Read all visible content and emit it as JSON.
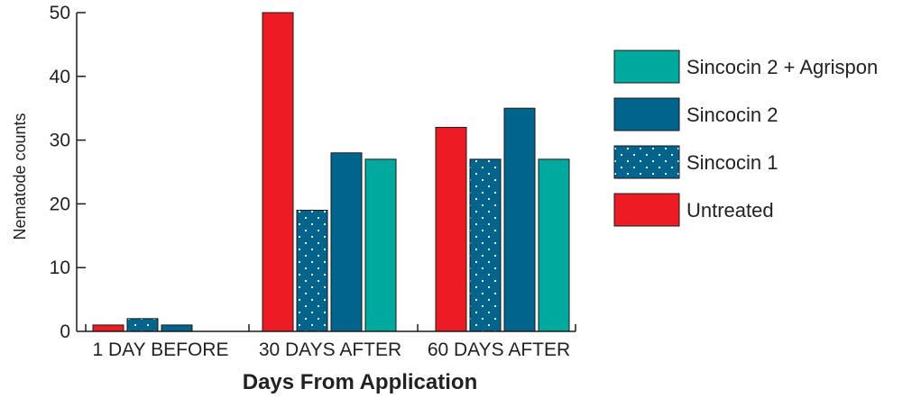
{
  "chart_data": {
    "type": "bar",
    "title": "",
    "xlabel": "Days From Application",
    "ylabel": "Nematode counts",
    "ylim": [
      0,
      50
    ],
    "yticks": [
      0,
      10,
      20,
      30,
      40,
      50
    ],
    "grid": false,
    "legend_position": "right",
    "categories": [
      "1 DAY BEFORE",
      "30 DAYS AFTER",
      "60 DAYS AFTER"
    ],
    "series": [
      {
        "name": "Untreated",
        "values": [
          1,
          50,
          32
        ],
        "color": "#ed1c24",
        "pattern": "solid"
      },
      {
        "name": "Sincocin 1",
        "values": [
          2,
          19,
          27
        ],
        "color": "#00648c",
        "pattern": "dots"
      },
      {
        "name": "Sincocin 2",
        "values": [
          1,
          28,
          35
        ],
        "color": "#00648c",
        "pattern": "solid"
      },
      {
        "name": "Sincocin 2 + Agrispon",
        "values": [
          0,
          27,
          27
        ],
        "color": "#00a99d",
        "pattern": "solid"
      }
    ],
    "legend_order": [
      "Sincocin 2 + Agrispon",
      "Sincocin 2",
      "Sincocin 1",
      "Untreated"
    ]
  }
}
